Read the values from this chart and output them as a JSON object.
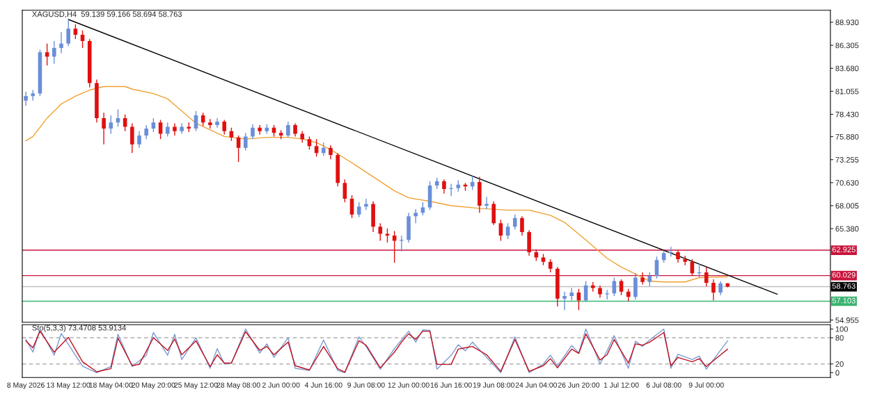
{
  "chart_data": [
    {
      "type": "candlestick",
      "title": "XAGUSD,H4  59.139 59.166 58.694 58.763",
      "colors": [
        "#6a8fd8",
        "#6a8fd8",
        "#6a8fd8",
        "#e01010",
        "#6a8fd8",
        "#6a8fd8",
        "#6a8fd8",
        "#e01010",
        "#e01010",
        "#e01010",
        "#e01010",
        "#e01010",
        "#6a8fd8",
        "#6a8fd8",
        "#e01010",
        "#e01010",
        "#6a8fd8",
        "#6a8fd8",
        "#6a8fd8",
        "#e01010",
        "#6a8fd8",
        "#e01010",
        "#6a8fd8",
        "#e01010",
        "#6a8fd8",
        "#e01010",
        "#e01010",
        "#6a8fd8",
        "#e01010",
        "#e01010",
        "#e01010",
        "#6a8fd8",
        "#6a8fd8",
        "#e01010",
        "#6a8fd8",
        "#e01010",
        "#e01010",
        "#6a8fd8",
        "#e01010",
        "#e01010",
        "#e01010",
        "#e01010",
        "#6a8fd8",
        "#e01010",
        "#e01010",
        "#e01010",
        "#e01010",
        "#6a8fd8",
        "#6a8fd8",
        "#e01010",
        "#e01010",
        "#e01010",
        "#e01010",
        "#6a8fd8",
        "#6a8fd8",
        "#6a8fd8",
        "#6a8fd8",
        "#6a8fd8",
        "#6a8fd8",
        "#e01010",
        "#6a8fd8",
        "#6a8fd8",
        "#e01010",
        "#6a8fd8",
        "#e01010",
        "#6a8fd8",
        "#e01010",
        "#e01010",
        "#6a8fd8",
        "#6a8fd8",
        "#e01010",
        "#e01010",
        "#e01010",
        "#e01010",
        "#e01010",
        "#e01010",
        "#6a8fd8",
        "#6a8fd8",
        "#e01010",
        "#6a8fd8",
        "#e01010",
        "#e01010",
        "#6a8fd8",
        "#6a8fd8",
        "#e01010",
        "#e01010",
        "#6a8fd8",
        "#e01010",
        "#6a8fd8",
        "#6a8fd8",
        "#6a8fd8",
        "#6a8fd8",
        "#e01010",
        "#e01010",
        "#e01010",
        "#6a8fd8",
        "#e01010",
        "#e01010",
        "#6a8fd8",
        "#e01010",
        null,
        null,
        null,
        null,
        null,
        null,
        null,
        null,
        null,
        null,
        null,
        null,
        null,
        null
      ],
      "ohlc": [
        [
          80.0,
          81.0,
          79.4,
          80.5
        ],
        [
          80.5,
          81.2,
          80.0,
          80.8
        ],
        [
          80.8,
          85.8,
          80.5,
          85.5
        ],
        [
          85.5,
          86.5,
          84.0,
          85.0
        ],
        [
          85.0,
          86.8,
          84.2,
          86.0
        ],
        [
          86.0,
          87.8,
          85.4,
          86.5
        ],
        [
          86.5,
          89.25,
          86.2,
          88.2
        ],
        [
          88.2,
          88.7,
          87.0,
          87.5
        ],
        [
          87.5,
          88.0,
          86.0,
          86.8
        ],
        [
          86.8,
          87.0,
          81.5,
          82.0
        ],
        [
          82.0,
          82.4,
          77.5,
          78.0
        ],
        [
          78.0,
          78.6,
          75.0,
          76.8
        ],
        [
          76.8,
          78.3,
          76.2,
          77.5
        ],
        [
          77.5,
          79.0,
          77.0,
          78.0
        ],
        [
          78.0,
          78.4,
          76.5,
          77.0
        ],
        [
          77.0,
          77.4,
          74.0,
          75.0
        ],
        [
          75.0,
          76.5,
          74.6,
          76.0
        ],
        [
          76.0,
          77.2,
          75.6,
          76.8
        ],
        [
          76.8,
          78.0,
          76.4,
          77.5
        ],
        [
          77.5,
          77.8,
          75.6,
          76.2
        ],
        [
          76.2,
          77.5,
          75.9,
          77.0
        ],
        [
          77.0,
          77.4,
          76.0,
          76.5
        ],
        [
          76.5,
          77.4,
          76.2,
          77.0
        ],
        [
          77.0,
          77.5,
          76.4,
          76.8
        ],
        [
          76.8,
          78.8,
          76.5,
          78.3
        ],
        [
          78.3,
          78.6,
          77.1,
          77.5
        ],
        [
          77.5,
          77.9,
          76.8,
          77.2
        ],
        [
          77.2,
          78.0,
          76.9,
          77.6
        ],
        [
          77.6,
          77.8,
          76.1,
          76.5
        ],
        [
          76.5,
          76.9,
          75.4,
          75.8
        ],
        [
          75.8,
          76.0,
          73.0,
          74.6
        ],
        [
          74.6,
          76.3,
          74.3,
          75.9
        ],
        [
          75.9,
          77.3,
          75.6,
          76.9
        ],
        [
          76.9,
          77.2,
          76.1,
          76.5
        ],
        [
          76.5,
          77.3,
          76.2,
          76.9
        ],
        [
          76.9,
          77.2,
          75.9,
          76.3
        ],
        [
          76.3,
          76.6,
          75.6,
          76.0
        ],
        [
          76.0,
          77.6,
          75.8,
          77.2
        ],
        [
          77.2,
          77.4,
          75.9,
          76.2
        ],
        [
          76.2,
          76.5,
          75.2,
          75.6
        ],
        [
          75.6,
          75.9,
          74.4,
          74.8
        ],
        [
          74.8,
          75.6,
          73.6,
          74.0
        ],
        [
          74.0,
          75.2,
          73.7,
          74.6
        ],
        [
          74.6,
          74.9,
          73.3,
          73.8
        ],
        [
          73.8,
          74.0,
          70.2,
          70.6
        ],
        [
          70.6,
          71.0,
          68.4,
          68.8
        ],
        [
          68.8,
          69.2,
          66.6,
          67.0
        ],
        [
          67.0,
          68.4,
          66.7,
          67.9
        ],
        [
          67.9,
          68.8,
          67.5,
          68.2
        ],
        [
          68.2,
          68.5,
          65.0,
          65.6
        ],
        [
          65.6,
          66.0,
          64.0,
          64.8
        ],
        [
          64.8,
          65.4,
          63.8,
          64.6
        ],
        [
          64.6,
          65.1,
          61.5,
          64.0
        ],
        [
          64.0,
          64.6,
          62.8,
          64.1
        ],
        [
          64.1,
          67.2,
          63.8,
          66.8
        ],
        [
          66.8,
          67.6,
          66.0,
          67.2
        ],
        [
          67.2,
          68.4,
          66.9,
          67.8
        ],
        [
          67.8,
          70.8,
          67.5,
          70.3
        ],
        [
          70.3,
          71.2,
          69.9,
          70.8
        ],
        [
          70.8,
          71.0,
          69.4,
          69.9
        ],
        [
          69.9,
          70.5,
          69.1,
          70.0
        ],
        [
          70.0,
          70.9,
          69.6,
          70.4
        ],
        [
          70.4,
          70.6,
          69.7,
          70.2
        ],
        [
          70.2,
          71.4,
          69.8,
          70.7
        ],
        [
          70.7,
          71.3,
          67.2,
          68.0
        ],
        [
          68.0,
          69.0,
          67.6,
          68.2
        ],
        [
          68.2,
          68.5,
          65.8,
          66.0
        ],
        [
          66.0,
          66.4,
          64.0,
          64.6
        ],
        [
          64.6,
          66.0,
          64.2,
          65.6
        ],
        [
          65.6,
          67.0,
          65.3,
          66.6
        ],
        [
          66.6,
          66.8,
          64.6,
          65.0
        ],
        [
          65.0,
          65.2,
          62.3,
          62.7
        ],
        [
          62.7,
          63.0,
          61.7,
          62.1
        ],
        [
          62.1,
          62.5,
          61.2,
          61.6
        ],
        [
          61.6,
          61.9,
          60.4,
          60.8
        ],
        [
          60.8,
          61.0,
          56.5,
          57.4
        ],
        [
          57.4,
          58.2,
          56.1,
          57.7
        ],
        [
          57.7,
          58.6,
          57.2,
          58.1
        ],
        [
          58.1,
          58.5,
          56.1,
          57.2
        ],
        [
          57.2,
          59.4,
          57.0,
          58.9
        ],
        [
          58.9,
          59.3,
          58.2,
          58.6
        ],
        [
          58.6,
          58.9,
          57.5,
          57.9
        ],
        [
          57.9,
          58.4,
          57.3,
          58.0
        ],
        [
          58.0,
          59.8,
          57.7,
          59.4
        ],
        [
          59.4,
          59.6,
          57.8,
          58.2
        ],
        [
          58.2,
          58.5,
          57.1,
          57.6
        ],
        [
          57.6,
          60.3,
          57.3,
          59.8
        ],
        [
          59.8,
          60.4,
          59.0,
          59.3
        ],
        [
          59.3,
          60.4,
          58.8,
          60.0
        ],
        [
          60.0,
          62.2,
          59.7,
          61.8
        ],
        [
          61.8,
          62.9,
          61.5,
          62.6
        ],
        [
          62.6,
          63.3,
          62.2,
          62.7
        ],
        [
          62.7,
          62.9,
          61.5,
          61.9
        ],
        [
          61.9,
          62.3,
          61.2,
          61.6
        ],
        [
          61.6,
          61.9,
          60.0,
          60.3
        ],
        [
          60.3,
          61.4,
          59.8,
          60.4
        ],
        [
          60.4,
          61.0,
          58.8,
          59.2
        ],
        [
          59.2,
          59.6,
          57.2,
          58.1
        ],
        [
          58.1,
          59.4,
          57.8,
          59.139
        ],
        [
          59.139,
          59.166,
          58.694,
          58.763
        ],
        null,
        null,
        null,
        null,
        null,
        null,
        null,
        null,
        null,
        null,
        null,
        null,
        null,
        null
      ],
      "series": [
        {
          "type": "line",
          "color": "#f0a030",
          "values": [
            75.4,
            75.9,
            null,
            78.0,
            null,
            79.6,
            null,
            80.5,
            null,
            81.2,
            null,
            81.6,
            null,
            null,
            81.6,
            81.3,
            null,
            null,
            80.8,
            null,
            80.2,
            null,
            78.8,
            null,
            77.4,
            null,
            null,
            null,
            75.9,
            null,
            null,
            75.6,
            null,
            null,
            75.8,
            null,
            null,
            75.8,
            null,
            75.6,
            null,
            75.2,
            null,
            74.4,
            null,
            null,
            72.9,
            null,
            null,
            71.3,
            null,
            null,
            69.7,
            null,
            68.9,
            null,
            null,
            68.5,
            null,
            null,
            68.0,
            null,
            null,
            null,
            67.7,
            null,
            null,
            null,
            67.5,
            null,
            null,
            67.5,
            null,
            null,
            66.9,
            null,
            66.1,
            null,
            null,
            64.1,
            null,
            null,
            62.0,
            null,
            61.0,
            null,
            60.2,
            null,
            59.4,
            null,
            59.3,
            null,
            null,
            59.3,
            null,
            59.8,
            null,
            null,
            null,
            59.9,
            null,
            null,
            null,
            null,
            null,
            null,
            null,
            null,
            null,
            null,
            null,
            null,
            null,
            null
          ]
        },
        {
          "type": "line",
          "color": "#000000",
          "values": [
            null,
            null,
            null,
            null,
            null,
            null,
            89.25,
            null,
            null,
            null,
            null,
            null,
            null,
            null,
            null,
            null,
            null,
            null,
            null,
            null,
            null,
            null,
            null,
            null,
            null,
            null,
            null,
            null,
            null,
            null,
            null,
            null,
            null,
            null,
            null,
            null,
            null,
            null,
            null,
            null,
            null,
            null,
            null,
            null,
            null,
            null,
            null,
            null,
            null,
            null,
            null,
            null,
            null,
            null,
            null,
            null,
            null,
            null,
            null,
            null,
            null,
            null,
            null,
            null,
            null,
            null,
            null,
            null,
            null,
            null,
            null,
            null,
            null,
            null,
            null,
            null,
            null,
            null,
            null,
            null,
            null,
            null,
            null,
            null,
            null,
            null,
            null,
            null,
            null,
            null,
            null,
            null,
            null,
            null,
            null,
            null,
            null,
            null,
            null,
            null,
            null,
            null,
            null,
            null,
            null,
            null,
            57.9,
            null,
            null,
            null,
            null,
            null,
            null,
            null
          ]
        }
      ],
      "ylim": [
        54.7,
        90.3
      ],
      "yticks": [
        {
          "value": 54.955,
          "label": "54.955"
        },
        {
          "value": 65.38,
          "label": "65.380"
        },
        {
          "value": 68.005,
          "label": "68.005"
        },
        {
          "value": 70.63,
          "label": "70.630"
        },
        {
          "value": 73.255,
          "label": "73.255"
        },
        {
          "value": 75.88,
          "label": "75.880"
        },
        {
          "value": 78.43,
          "label": "78.430"
        },
        {
          "value": 81.055,
          "label": "81.055"
        },
        {
          "value": 83.68,
          "label": "83.680"
        },
        {
          "value": 86.305,
          "label": "86.305"
        },
        {
          "value": 88.93,
          "label": "88.930"
        }
      ],
      "ref_lines": [
        {
          "axis": "y",
          "value": 62.925,
          "label": "62.925",
          "color": "#c8143c"
        },
        {
          "axis": "y",
          "value": 60.029,
          "label": "60.029",
          "color": "#c8143c"
        },
        {
          "axis": "y",
          "value": 58.763,
          "label": "58.763",
          "color": "#c0c0c0"
        },
        {
          "axis": "y",
          "value": 57.103,
          "label": "57.103",
          "color": "#3cb371"
        }
      ],
      "tick_labels": "y",
      "grid": false,
      "legend": false
    },
    {
      "type": "line",
      "title": "Sto(5,3,3) 73.4708 53.9134",
      "categories": [
        "8 May 2026",
        null,
        null,
        null,
        null,
        null,
        "13 May 12:00",
        null,
        null,
        null,
        null,
        null,
        "18 May 04:00",
        null,
        null,
        null,
        null,
        null,
        "20 May 20:00",
        null,
        null,
        null,
        null,
        null,
        "25 May 12:00",
        null,
        null,
        null,
        null,
        null,
        "28 May 08:00",
        null,
        null,
        null,
        null,
        null,
        "2 Jun 00:00",
        null,
        null,
        null,
        null,
        null,
        "4 Jun 16:00",
        null,
        null,
        null,
        null,
        null,
        "9 Jun 08:00",
        null,
        null,
        null,
        null,
        null,
        "12 Jun 00:00",
        null,
        null,
        null,
        null,
        null,
        "16 Jun 16:00",
        null,
        null,
        null,
        null,
        null,
        "19 Jun 08:00",
        null,
        null,
        null,
        null,
        null,
        "24 Jun 04:00",
        null,
        null,
        null,
        null,
        null,
        "26 Jun 20:00",
        null,
        null,
        null,
        null,
        null,
        "1 Jul 12:00",
        null,
        null,
        null,
        null,
        null,
        "6 Jul 08:00",
        null,
        null,
        null,
        null,
        null,
        "9 Jul 00:00",
        null,
        null,
        null,
        null,
        null,
        null,
        null,
        null,
        null,
        null,
        null,
        null,
        null,
        null,
        null,
        null,
        null
      ],
      "series": [
        {
          "color": "#7b9bd0",
          "values": [
            76,
            47,
            100,
            null,
            40,
            90,
            null,
            null,
            15,
            null,
            0,
            null,
            14,
            88,
            null,
            14,
            null,
            40,
            92,
            null,
            40,
            88,
            30,
            null,
            80,
            null,
            10,
            55,
            20,
            22,
            null,
            100,
            null,
            45,
            66,
            35,
            null,
            80,
            10,
            null,
            5,
            null,
            75,
            null,
            5,
            0,
            null,
            82,
            60,
            null,
            8,
            null,
            55,
            75,
            95,
            70,
            98,
            97,
            8,
            null,
            40,
            64,
            50,
            70,
            null,
            35,
            null,
            0,
            null,
            82,
            null,
            0,
            null,
            20,
            40,
            15,
            null,
            62,
            45,
            100,
            null,
            20,
            50,
            85,
            null,
            10,
            72,
            60,
            75,
            null,
            100,
            10,
            42,
            null,
            30,
            38,
            8,
            null,
            null,
            73,
            null,
            null,
            null,
            null,
            null,
            null,
            null,
            null,
            null,
            null,
            null,
            null,
            null,
            null
          ]
        },
        {
          "color": "#c01020",
          "values": [
            73,
            57,
            95,
            null,
            47,
            null,
            81,
            null,
            25,
            null,
            2,
            null,
            9,
            79,
            null,
            16,
            19,
            null,
            80,
            null,
            51,
            77,
            41,
            null,
            73,
            null,
            14,
            41,
            22,
            22,
            null,
            94,
            null,
            51,
            60,
            41,
            null,
            70,
            16,
            null,
            6,
            null,
            60,
            null,
            9,
            1,
            null,
            73,
            63,
            null,
            11,
            null,
            47,
            70,
            89,
            76,
            95,
            95,
            19,
            null,
            19,
            54,
            57,
            60,
            null,
            41,
            null,
            3,
            null,
            76,
            null,
            3,
            null,
            16,
            32,
            11,
            null,
            54,
            44,
            89,
            null,
            29,
            41,
            76,
            null,
            22,
            66,
            63,
            70,
            null,
            92,
            16,
            35,
            null,
            25,
            32,
            14,
            null,
            null,
            54,
            null,
            null,
            null,
            null,
            null,
            null,
            null,
            null,
            null,
            null,
            null,
            null,
            null,
            null
          ]
        }
      ],
      "ylim": [
        -11,
        110
      ],
      "yticks": [
        0,
        20,
        80,
        100
      ],
      "ref_lines": [
        {
          "axis": "y",
          "value": 20,
          "color": "#b0b0b0",
          "line_style": "dashed"
        },
        {
          "axis": "y",
          "value": 80,
          "color": "#b0b0b0",
          "line_style": "dashed"
        }
      ],
      "grid": false,
      "legend": false
    }
  ]
}
